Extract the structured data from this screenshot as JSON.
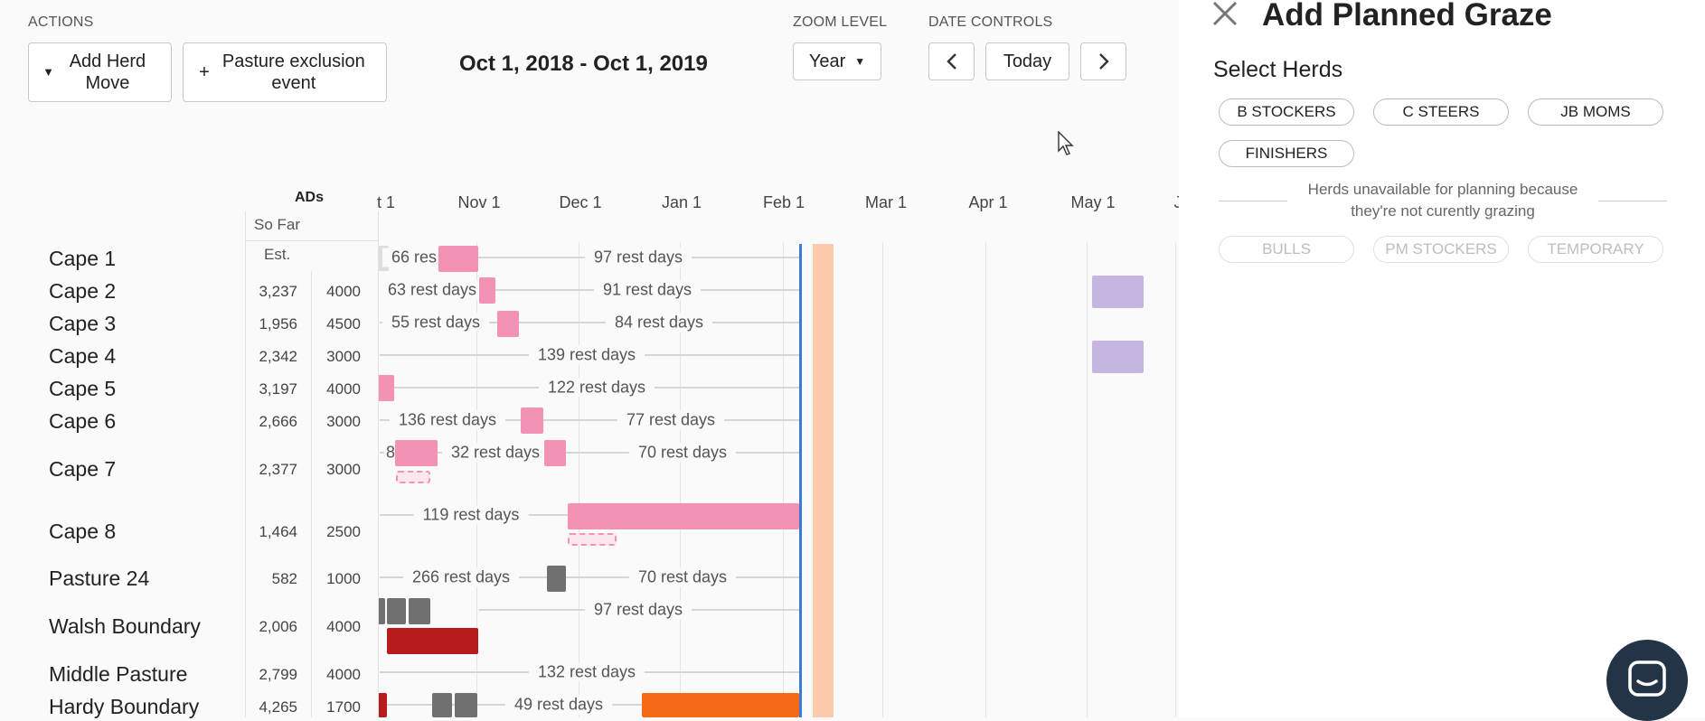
{
  "toolbar": {
    "actions_label": "ACTIONS",
    "add_herd_move": "Add Herd Move",
    "pasture_exclusion": "Pasture exclusion event",
    "date_range": "Oct 1, 2018 - Oct 1, 2019",
    "zoom_label": "ZOOM LEVEL",
    "zoom_value": "Year",
    "date_controls_label": "DATE CONTROLS",
    "today": "Today"
  },
  "timeline": {
    "months": [
      "t 1",
      "Nov 1",
      "Dec 1",
      "Jan 1",
      "Feb 1",
      "Mar 1",
      "Apr 1",
      "May 1",
      "J"
    ]
  },
  "ads_table": {
    "header": "ADs",
    "so_far_label": "So Far",
    "est_label": "Est."
  },
  "pastures": [
    {
      "name": "Cape 1",
      "so_far": "",
      "est": ""
    },
    {
      "name": "Cape 2",
      "so_far": "3,237",
      "est": "4000"
    },
    {
      "name": "Cape 3",
      "so_far": "1,956",
      "est": "4500"
    },
    {
      "name": "Cape 4",
      "so_far": "2,342",
      "est": "3000"
    },
    {
      "name": "Cape 5",
      "so_far": "3,197",
      "est": "4000"
    },
    {
      "name": "Cape 6",
      "so_far": "2,666",
      "est": "3000"
    },
    {
      "name": "Cape 7",
      "so_far": "2,377",
      "est": "3000"
    },
    {
      "name": "Cape 8",
      "so_far": "1,464",
      "est": "2500"
    },
    {
      "name": "Pasture 24",
      "so_far": "582",
      "est": "1000"
    },
    {
      "name": "Walsh Boundary",
      "so_far": "2,006",
      "est": "4000"
    },
    {
      "name": "Middle Pasture",
      "so_far": "2,799",
      "est": "4000"
    },
    {
      "name": "Hardy Boundary",
      "so_far": "4,265",
      "est": "1700"
    }
  ],
  "rest_labels": {
    "cape1_a": "66 res",
    "cape1_b": "97 rest days",
    "cape2_a": "63 rest days",
    "cape2_b": "91 rest days",
    "cape3_a": "55 rest days",
    "cape3_b": "84 rest days",
    "cape4_a": "139 rest days",
    "cape5_a": "122 rest days",
    "cape6_a": "136 rest days",
    "cape6_b": "77 rest days",
    "cape7_x": "8",
    "cape7_a": "32 rest days",
    "cape7_b": "70 rest days",
    "cape8_a": "119 rest days",
    "p24_a": "266 rest days",
    "p24_b": "70 rest days",
    "walsh_a": "97 rest days",
    "middle_a": "132 rest days",
    "hardy_a": "49 rest days"
  },
  "panel": {
    "title": "Add Planned Graze",
    "select_herds": "Select Herds",
    "herds": [
      "B STOCKERS",
      "C STEERS",
      "JB MOMS",
      "FINISHERS"
    ],
    "unavailable_note": "Herds unavailable for planning because they're not curently grazing",
    "unavailable_herds": [
      "BULLS",
      "PM STOCKERS",
      "TEMPORARY"
    ]
  },
  "colors": {
    "graze_pink": "#f392b5",
    "graze_grey": "#707070",
    "graze_red": "#b81b1b",
    "graze_orange": "#f56a16",
    "planned_lavender": "#c4b6e0",
    "today_line": "#3a7bd5",
    "exclusion_peach": "#fccbab"
  }
}
